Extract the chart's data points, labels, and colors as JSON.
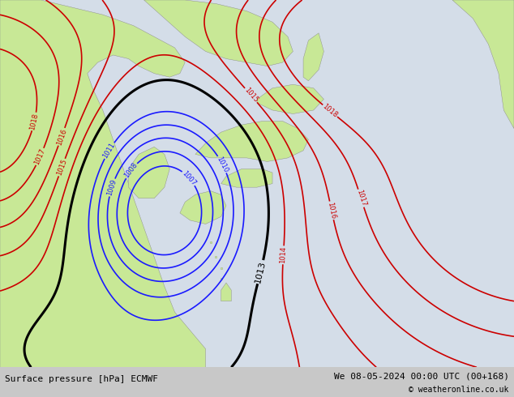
{
  "title_left": "Surface pressure [hPa] ECMWF",
  "title_right": "We 08-05-2024 00:00 UTC (00+168)",
  "copyright": "© weatheronline.co.uk",
  "fig_width": 6.34,
  "fig_height": 4.9,
  "dpi": 100,
  "font_size_bottom": 8,
  "font_size_labels": 6,
  "levels_blue": [
    1007,
    1008,
    1009,
    1010,
    1011
  ],
  "levels_black": [
    1013
  ],
  "levels_red": [
    1014,
    1015,
    1016,
    1017,
    1018
  ],
  "land_color": "#c8e896",
  "sea_color": "#c8d8e8",
  "bg_color": "#c8c8c8",
  "bottom_bar_color": "#a8a8a8"
}
